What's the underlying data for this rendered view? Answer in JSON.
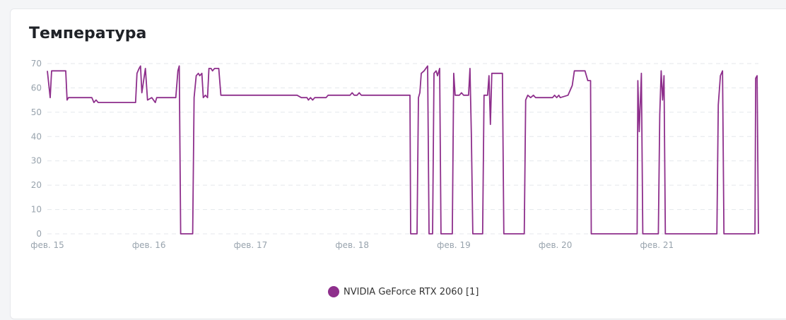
{
  "colors": {
    "series": "#8e2f8c",
    "grid": "#e4e7eb",
    "axis_text": "#98a3ad"
  },
  "chart_data": {
    "type": "line",
    "title": "Температура",
    "ylim": [
      0,
      70
    ],
    "yticks": [
      0,
      10,
      20,
      30,
      40,
      50,
      60,
      70
    ],
    "xlim": [
      "2024-02-15T00:00",
      "2024-02-21T23:59"
    ],
    "x_tick_labels": [
      "фев. 15",
      "фев. 16",
      "фев. 17",
      "фев. 18",
      "фев. 19",
      "фев. 20",
      "фев. 21"
    ],
    "x_tick_dates": [
      "2024-02-15T00:00",
      "2024-02-16T00:00",
      "2024-02-17T00:00",
      "2024-02-18T00:00",
      "2024-02-19T00:00",
      "2024-02-20T00:00",
      "2024-02-21T00:00"
    ],
    "grid": true,
    "legend": "bottom-center",
    "series": [
      {
        "name": "NVIDIA GeForce RTX 2060 [1]",
        "points": [
          [
            "2024-02-15T00:00",
            67
          ],
          [
            "2024-02-15T00:40",
            56
          ],
          [
            "2024-02-15T01:00",
            67
          ],
          [
            "2024-02-15T04:20",
            67
          ],
          [
            "2024-02-15T04:40",
            55
          ],
          [
            "2024-02-15T05:00",
            56
          ],
          [
            "2024-02-15T10:30",
            56
          ],
          [
            "2024-02-15T11:00",
            54
          ],
          [
            "2024-02-15T11:30",
            55
          ],
          [
            "2024-02-15T12:00",
            54
          ],
          [
            "2024-02-15T20:50",
            54
          ],
          [
            "2024-02-15T21:10",
            66
          ],
          [
            "2024-02-15T21:40",
            68
          ],
          [
            "2024-02-15T22:00",
            69
          ],
          [
            "2024-02-15T22:20",
            58
          ],
          [
            "2024-02-15T22:40",
            62
          ],
          [
            "2024-02-15T23:10",
            68
          ],
          [
            "2024-02-15T23:40",
            55
          ],
          [
            "2024-02-16T00:40",
            56
          ],
          [
            "2024-02-16T01:30",
            54
          ],
          [
            "2024-02-16T01:50",
            56
          ],
          [
            "2024-02-16T06:20",
            56
          ],
          [
            "2024-02-16T06:50",
            67
          ],
          [
            "2024-02-16T07:10",
            69
          ],
          [
            "2024-02-16T07:30",
            0
          ],
          [
            "2024-02-16T10:20",
            0
          ],
          [
            "2024-02-16T10:40",
            56
          ],
          [
            "2024-02-16T11:10",
            65
          ],
          [
            "2024-02-16T11:40",
            66
          ],
          [
            "2024-02-16T12:00",
            65
          ],
          [
            "2024-02-16T12:30",
            66
          ],
          [
            "2024-02-16T12:50",
            56
          ],
          [
            "2024-02-16T13:20",
            57
          ],
          [
            "2024-02-16T13:50",
            56
          ],
          [
            "2024-02-16T14:10",
            68
          ],
          [
            "2024-02-16T14:40",
            68
          ],
          [
            "2024-02-16T15:00",
            67
          ],
          [
            "2024-02-16T15:30",
            68
          ],
          [
            "2024-02-16T16:30",
            68
          ],
          [
            "2024-02-16T17:00",
            57
          ],
          [
            "2024-02-17T11:00",
            57
          ],
          [
            "2024-02-17T12:00",
            56
          ],
          [
            "2024-02-17T13:20",
            56
          ],
          [
            "2024-02-17T13:40",
            55
          ],
          [
            "2024-02-17T14:10",
            56
          ],
          [
            "2024-02-17T14:40",
            55
          ],
          [
            "2024-02-17T15:10",
            56
          ],
          [
            "2024-02-17T17:50",
            56
          ],
          [
            "2024-02-17T18:20",
            57
          ],
          [
            "2024-02-17T23:30",
            57
          ],
          [
            "2024-02-18T00:00",
            58
          ],
          [
            "2024-02-18T00:30",
            57
          ],
          [
            "2024-02-18T01:10",
            57
          ],
          [
            "2024-02-18T01:40",
            58
          ],
          [
            "2024-02-18T02:10",
            57
          ],
          [
            "2024-02-18T04:00",
            57
          ],
          [
            "2024-02-18T08:00",
            57
          ],
          [
            "2024-02-18T13:40",
            57
          ],
          [
            "2024-02-18T13:50",
            0
          ],
          [
            "2024-02-18T15:20",
            0
          ],
          [
            "2024-02-18T15:40",
            56
          ],
          [
            "2024-02-18T16:00",
            58
          ],
          [
            "2024-02-18T16:20",
            66
          ],
          [
            "2024-02-18T17:00",
            67
          ],
          [
            "2024-02-18T17:50",
            69
          ],
          [
            "2024-02-18T18:10",
            0
          ],
          [
            "2024-02-18T19:00",
            0
          ],
          [
            "2024-02-18T19:20",
            66
          ],
          [
            "2024-02-18T19:50",
            67
          ],
          [
            "2024-02-18T20:10",
            65
          ],
          [
            "2024-02-18T20:40",
            68
          ],
          [
            "2024-02-18T21:00",
            0
          ],
          [
            "2024-02-18T23:40",
            0
          ],
          [
            "2024-02-19T00:00",
            66
          ],
          [
            "2024-02-19T00:20",
            57
          ],
          [
            "2024-02-19T01:20",
            57
          ],
          [
            "2024-02-19T01:50",
            58
          ],
          [
            "2024-02-19T02:20",
            57
          ],
          [
            "2024-02-19T03:30",
            57
          ],
          [
            "2024-02-19T03:50",
            68
          ],
          [
            "2024-02-19T04:10",
            40
          ],
          [
            "2024-02-19T04:30",
            0
          ],
          [
            "2024-02-19T06:50",
            0
          ],
          [
            "2024-02-19T07:10",
            57
          ],
          [
            "2024-02-19T07:30",
            57
          ],
          [
            "2024-02-19T08:00",
            57
          ],
          [
            "2024-02-19T08:20",
            65
          ],
          [
            "2024-02-19T08:40",
            45
          ],
          [
            "2024-02-19T09:00",
            66
          ],
          [
            "2024-02-19T11:30",
            66
          ],
          [
            "2024-02-19T11:50",
            0
          ],
          [
            "2024-02-19T16:40",
            0
          ],
          [
            "2024-02-19T17:00",
            55
          ],
          [
            "2024-02-19T17:30",
            57
          ],
          [
            "2024-02-19T18:10",
            56
          ],
          [
            "2024-02-19T18:50",
            57
          ],
          [
            "2024-02-19T19:20",
            56
          ],
          [
            "2024-02-19T23:20",
            56
          ],
          [
            "2024-02-19T23:50",
            57
          ],
          [
            "2024-02-20T00:20",
            56
          ],
          [
            "2024-02-20T00:50",
            57
          ],
          [
            "2024-02-20T01:10",
            56
          ],
          [
            "2024-02-20T03:00",
            57
          ],
          [
            "2024-02-20T04:00",
            61
          ],
          [
            "2024-02-20T04:30",
            67
          ],
          [
            "2024-02-20T07:00",
            67
          ],
          [
            "2024-02-20T07:40",
            63
          ],
          [
            "2024-02-20T08:20",
            63
          ],
          [
            "2024-02-20T08:30",
            0
          ],
          [
            "2024-02-20T19:20",
            0
          ],
          [
            "2024-02-20T19:30",
            63
          ],
          [
            "2024-02-20T19:50",
            42
          ],
          [
            "2024-02-20T20:20",
            66
          ],
          [
            "2024-02-20T20:40",
            0
          ],
          [
            "2024-02-21T00:20",
            0
          ],
          [
            "2024-02-21T00:40",
            49
          ],
          [
            "2024-02-21T01:00",
            67
          ],
          [
            "2024-02-21T01:20",
            55
          ],
          [
            "2024-02-21T01:40",
            65
          ],
          [
            "2024-02-21T02:00",
            0
          ],
          [
            "2024-02-21T14:10",
            0
          ],
          [
            "2024-02-21T14:30",
            53
          ],
          [
            "2024-02-21T15:00",
            65
          ],
          [
            "2024-02-21T15:30",
            67
          ],
          [
            "2024-02-21T15:50",
            0
          ],
          [
            "2024-02-21T23:10",
            0
          ],
          [
            "2024-02-21T23:20",
            64
          ],
          [
            "2024-02-21T23:40",
            65
          ],
          [
            "2024-02-21T23:59",
            0
          ]
        ]
      }
    ]
  }
}
